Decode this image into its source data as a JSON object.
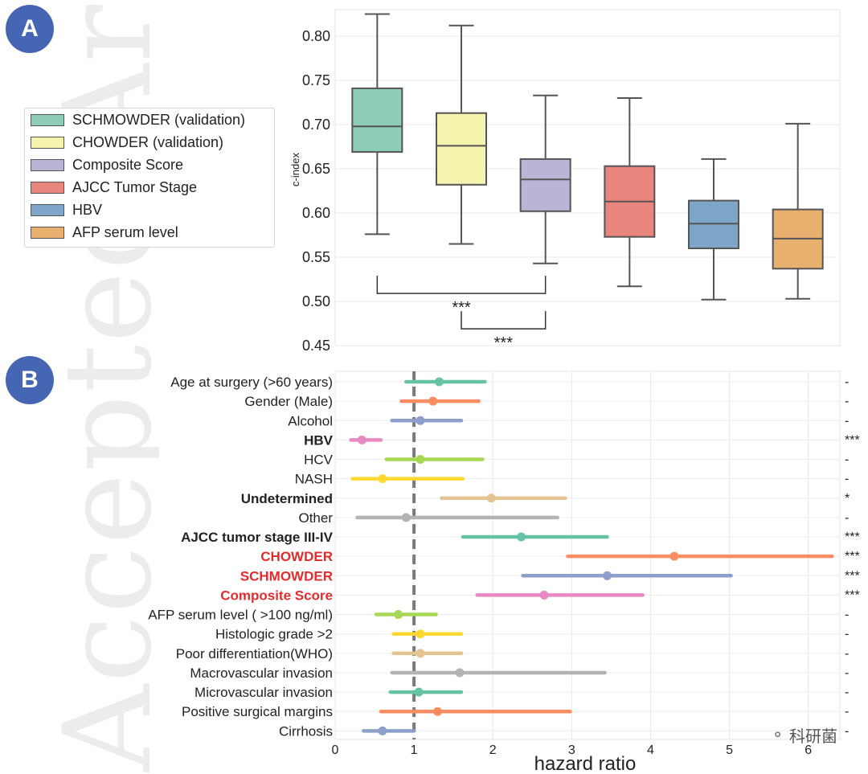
{
  "watermark": "Accepted Article",
  "panels": {
    "a_label": "A",
    "b_label": "B"
  },
  "credit": {
    "text": "科研菌",
    "icon": "wechat-icon"
  },
  "chart_data": [
    {
      "type": "box",
      "panel": "A",
      "ylabel": "c-index",
      "ylim": [
        0.45,
        0.83
      ],
      "yticks": [
        "0.45",
        "0.50",
        "0.55",
        "0.60",
        "0.65",
        "0.70",
        "0.75",
        "0.80"
      ],
      "grid": true,
      "legend_position": "left, outside plot",
      "series": [
        {
          "name": "SCHMOWDER (validation)",
          "color": "#8fcbb9",
          "min": 0.576,
          "q1": 0.669,
          "median": 0.698,
          "q3": 0.741,
          "max": 0.825
        },
        {
          "name": "CHOWDER (validation)",
          "color": "#f5f3ad",
          "min": 0.565,
          "q1": 0.632,
          "median": 0.676,
          "q3": 0.713,
          "max": 0.812
        },
        {
          "name": "Composite Score",
          "color": "#b9b5d4",
          "min": 0.543,
          "q1": 0.602,
          "median": 0.638,
          "q3": 0.661,
          "max": 0.733
        },
        {
          "name": "AJCC Tumor Stage",
          "color": "#e8857c",
          "min": 0.517,
          "q1": 0.573,
          "median": 0.613,
          "q3": 0.653,
          "max": 0.73
        },
        {
          "name": "HBV",
          "color": "#7ea6c8",
          "min": 0.502,
          "q1": 0.56,
          "median": 0.588,
          "q3": 0.614,
          "max": 0.661
        },
        {
          "name": "AFP serum level",
          "color": "#e8b06e",
          "min": 0.503,
          "q1": 0.537,
          "median": 0.571,
          "q3": 0.604,
          "max": 0.701
        }
      ],
      "annotations": [
        {
          "text": "***",
          "from": 0,
          "to": 2,
          "y": 0.509
        },
        {
          "text": "***",
          "from": 1,
          "to": 2,
          "y": 0.469
        }
      ]
    },
    {
      "type": "forest",
      "panel": "B",
      "xlabel": "hazard ratio",
      "xlim": [
        0,
        6.4
      ],
      "xticks": [
        "0",
        "1",
        "2",
        "3",
        "4",
        "5",
        "6"
      ],
      "reference_line": 1,
      "grid": true,
      "rows": [
        {
          "label": "Age at surgery (>60 years)",
          "hr": 1.32,
          "lo": 0.9,
          "hi": 1.9,
          "sig": "-",
          "color": "#66c2a5",
          "style": "normal"
        },
        {
          "label": "Gender (Male)",
          "hr": 1.24,
          "lo": 0.84,
          "hi": 1.82,
          "sig": "-",
          "color": "#fc8d62",
          "style": "normal"
        },
        {
          "label": "Alcohol",
          "hr": 1.08,
          "lo": 0.72,
          "hi": 1.6,
          "sig": "-",
          "color": "#8da0cb",
          "style": "normal"
        },
        {
          "label": "HBV",
          "hr": 0.34,
          "lo": 0.2,
          "hi": 0.58,
          "sig": "***",
          "color": "#e78ac3",
          "style": "bold"
        },
        {
          "label": "HCV",
          "hr": 1.08,
          "lo": 0.65,
          "hi": 1.87,
          "sig": "-",
          "color": "#a6d854",
          "style": "normal"
        },
        {
          "label": "NASH",
          "hr": 0.6,
          "lo": 0.22,
          "hi": 1.62,
          "sig": "-",
          "color": "#ffd92f",
          "style": "normal"
        },
        {
          "label": "Undetermined",
          "hr": 1.98,
          "lo": 1.35,
          "hi": 2.92,
          "sig": "*",
          "color": "#e5c494",
          "style": "bold"
        },
        {
          "label": "Other",
          "hr": 0.9,
          "lo": 0.28,
          "hi": 2.82,
          "sig": "-",
          "color": "#b3b3b3",
          "style": "normal"
        },
        {
          "label": "AJCC tumor stage III-IV",
          "hr": 2.36,
          "lo": 1.62,
          "hi": 3.45,
          "sig": "***",
          "color": "#66c2a5",
          "style": "bold"
        },
        {
          "label": "CHOWDER",
          "hr": 4.3,
          "lo": 2.95,
          "hi": 6.3,
          "sig": "***",
          "color": "#fc8d62",
          "style": "red"
        },
        {
          "label": "SCHMOWDER",
          "hr": 3.45,
          "lo": 2.38,
          "hi": 5.02,
          "sig": "***",
          "color": "#8da0cb",
          "style": "red"
        },
        {
          "label": "Composite Score",
          "hr": 2.65,
          "lo": 1.8,
          "hi": 3.9,
          "sig": "***",
          "color": "#e78ac3",
          "style": "red"
        },
        {
          "label": "AFP serum level ( >100 ng/ml)",
          "hr": 0.8,
          "lo": 0.52,
          "hi": 1.28,
          "sig": "-",
          "color": "#a6d854",
          "style": "normal"
        },
        {
          "label": "Histologic grade >2",
          "hr": 1.08,
          "lo": 0.74,
          "hi": 1.6,
          "sig": "-",
          "color": "#ffd92f",
          "style": "normal"
        },
        {
          "label": "Poor differentiation(WHO)",
          "hr": 1.08,
          "lo": 0.74,
          "hi": 1.6,
          "sig": "-",
          "color": "#e5c494",
          "style": "normal"
        },
        {
          "label": "Macrovascular invasion",
          "hr": 1.58,
          "lo": 0.72,
          "hi": 3.42,
          "sig": "-",
          "color": "#b3b3b3",
          "style": "normal"
        },
        {
          "label": "Microvascular invasion",
          "hr": 1.06,
          "lo": 0.7,
          "hi": 1.6,
          "sig": "-",
          "color": "#66c2a5",
          "style": "normal"
        },
        {
          "label": "Positive surgical margins",
          "hr": 1.3,
          "lo": 0.58,
          "hi": 2.98,
          "sig": "-",
          "color": "#fc8d62",
          "style": "normal"
        },
        {
          "label": "Cirrhosis",
          "hr": 0.6,
          "lo": 0.36,
          "hi": 1.0,
          "sig": "-",
          "color": "#8da0cb",
          "style": "normal"
        }
      ]
    }
  ]
}
